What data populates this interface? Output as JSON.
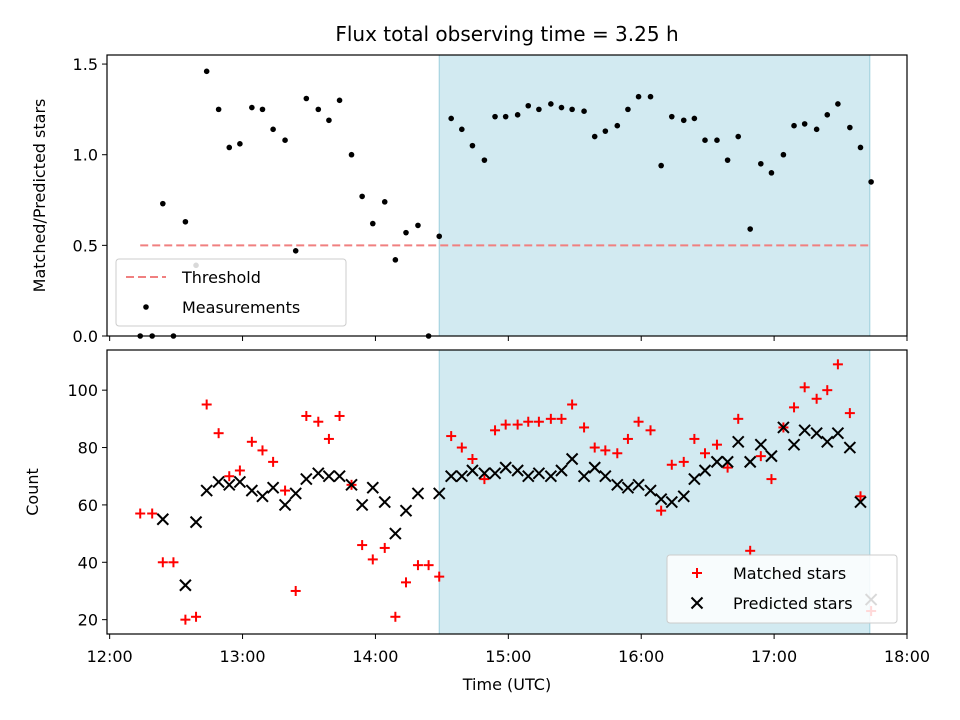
{
  "chart_data": {
    "type": "scatter",
    "title": "Flux total observing time = 3.25 h",
    "xlabel": "Time (UTC)",
    "x_tick_labels": [
      "12:00",
      "13:00",
      "14:00",
      "15:00",
      "16:00",
      "17:00",
      "18:00"
    ],
    "xlim_hours": [
      11.98,
      18.0
    ],
    "shaded_interval_hours": [
      14.48,
      17.72
    ],
    "shade_color": "#add8e6",
    "top_panel": {
      "ylabel": "Matched/Predicted stars",
      "ylim": [
        0,
        1.55
      ],
      "y_ticks": [
        "0.0",
        "0.5",
        "1.0",
        "1.5"
      ],
      "threshold": {
        "name": "Threshold",
        "value": 0.5,
        "x_range_hours": [
          12.23,
          17.72
        ],
        "color": "#f08080"
      },
      "series": [
        {
          "name": "Measurements",
          "color": "#000000",
          "points": [
            [
              12.23,
              0.0
            ],
            [
              12.32,
              0.0
            ],
            [
              12.4,
              0.73
            ],
            [
              12.48,
              0.0
            ],
            [
              12.57,
              0.63
            ],
            [
              12.65,
              0.39
            ],
            [
              12.73,
              1.46
            ],
            [
              12.82,
              1.25
            ],
            [
              12.9,
              1.04
            ],
            [
              12.98,
              1.06
            ],
            [
              13.07,
              1.26
            ],
            [
              13.15,
              1.25
            ],
            [
              13.23,
              1.14
            ],
            [
              13.32,
              1.08
            ],
            [
              13.4,
              0.47
            ],
            [
              13.48,
              1.31
            ],
            [
              13.57,
              1.25
            ],
            [
              13.65,
              1.19
            ],
            [
              13.73,
              1.3
            ],
            [
              13.82,
              1.0
            ],
            [
              13.9,
              0.77
            ],
            [
              13.98,
              0.62
            ],
            [
              14.07,
              0.74
            ],
            [
              14.15,
              0.42
            ],
            [
              14.23,
              0.57
            ],
            [
              14.32,
              0.61
            ],
            [
              14.4,
              0.0
            ],
            [
              14.48,
              0.55
            ],
            [
              14.57,
              1.2
            ],
            [
              14.65,
              1.14
            ],
            [
              14.73,
              1.05
            ],
            [
              14.82,
              0.97
            ],
            [
              14.9,
              1.21
            ],
            [
              14.98,
              1.21
            ],
            [
              15.07,
              1.22
            ],
            [
              15.15,
              1.27
            ],
            [
              15.23,
              1.25
            ],
            [
              15.32,
              1.28
            ],
            [
              15.4,
              1.26
            ],
            [
              15.48,
              1.25
            ],
            [
              15.57,
              1.24
            ],
            [
              15.65,
              1.1
            ],
            [
              15.73,
              1.13
            ],
            [
              15.82,
              1.16
            ],
            [
              15.9,
              1.25
            ],
            [
              15.98,
              1.32
            ],
            [
              16.07,
              1.32
            ],
            [
              16.15,
              0.94
            ],
            [
              16.23,
              1.21
            ],
            [
              16.32,
              1.19
            ],
            [
              16.4,
              1.2
            ],
            [
              16.48,
              1.08
            ],
            [
              16.57,
              1.08
            ],
            [
              16.65,
              0.97
            ],
            [
              16.73,
              1.1
            ],
            [
              16.82,
              0.59
            ],
            [
              16.9,
              0.95
            ],
            [
              16.98,
              0.9
            ],
            [
              17.07,
              1.0
            ],
            [
              17.15,
              1.16
            ],
            [
              17.23,
              1.17
            ],
            [
              17.32,
              1.14
            ],
            [
              17.4,
              1.22
            ],
            [
              17.48,
              1.28
            ],
            [
              17.57,
              1.15
            ],
            [
              17.65,
              1.04
            ],
            [
              17.73,
              0.85
            ]
          ]
        }
      ],
      "legend": {
        "placement": "lower left",
        "entries": [
          "Threshold",
          "Measurements"
        ]
      }
    },
    "bottom_panel": {
      "ylabel": "Count",
      "ylim": [
        15,
        114
      ],
      "y_ticks": [
        "20",
        "40",
        "60",
        "80",
        "100"
      ],
      "series": [
        {
          "name": "Matched stars",
          "color": "#ff0000",
          "points": [
            [
              12.23,
              57
            ],
            [
              12.32,
              57
            ],
            [
              12.4,
              40
            ],
            [
              12.48,
              40
            ],
            [
              12.57,
              20
            ],
            [
              12.65,
              21
            ],
            [
              12.73,
              95
            ],
            [
              12.82,
              85
            ],
            [
              12.9,
              70
            ],
            [
              12.98,
              72
            ],
            [
              13.07,
              82
            ],
            [
              13.15,
              79
            ],
            [
              13.23,
              75
            ],
            [
              13.32,
              65
            ],
            [
              13.4,
              30
            ],
            [
              13.48,
              91
            ],
            [
              13.57,
              89
            ],
            [
              13.65,
              83
            ],
            [
              13.73,
              91
            ],
            [
              13.82,
              67
            ],
            [
              13.9,
              46
            ],
            [
              13.98,
              41
            ],
            [
              14.07,
              45
            ],
            [
              14.15,
              21
            ],
            [
              14.23,
              33
            ],
            [
              14.32,
              39
            ],
            [
              14.4,
              39
            ],
            [
              14.48,
              35
            ],
            [
              14.57,
              84
            ],
            [
              14.65,
              80
            ],
            [
              14.73,
              76
            ],
            [
              14.82,
              69
            ],
            [
              14.9,
              86
            ],
            [
              14.98,
              88
            ],
            [
              15.07,
              88
            ],
            [
              15.15,
              89
            ],
            [
              15.23,
              89
            ],
            [
              15.32,
              90
            ],
            [
              15.4,
              90
            ],
            [
              15.48,
              95
            ],
            [
              15.57,
              87
            ],
            [
              15.65,
              80
            ],
            [
              15.73,
              79
            ],
            [
              15.82,
              78
            ],
            [
              15.9,
              83
            ],
            [
              15.98,
              89
            ],
            [
              16.07,
              86
            ],
            [
              16.15,
              58
            ],
            [
              16.23,
              74
            ],
            [
              16.32,
              75
            ],
            [
              16.4,
              83
            ],
            [
              16.48,
              78
            ],
            [
              16.57,
              81
            ],
            [
              16.65,
              73
            ],
            [
              16.73,
              90
            ],
            [
              16.82,
              44
            ],
            [
              16.9,
              77
            ],
            [
              16.98,
              69
            ],
            [
              17.07,
              87
            ],
            [
              17.15,
              94
            ],
            [
              17.23,
              101
            ],
            [
              17.32,
              97
            ],
            [
              17.4,
              100
            ],
            [
              17.48,
              109
            ],
            [
              17.57,
              92
            ],
            [
              17.65,
              63
            ],
            [
              17.73,
              23
            ]
          ]
        },
        {
          "name": "Predicted stars",
          "color": "#000000",
          "points": [
            [
              12.4,
              55
            ],
            [
              12.57,
              32
            ],
            [
              12.65,
              54
            ],
            [
              12.73,
              65
            ],
            [
              12.82,
              68
            ],
            [
              12.9,
              67
            ],
            [
              12.98,
              68
            ],
            [
              13.07,
              65
            ],
            [
              13.15,
              63
            ],
            [
              13.23,
              66
            ],
            [
              13.32,
              60
            ],
            [
              13.4,
              64
            ],
            [
              13.48,
              69
            ],
            [
              13.57,
              71
            ],
            [
              13.65,
              70
            ],
            [
              13.73,
              70
            ],
            [
              13.82,
              67
            ],
            [
              13.9,
              60
            ],
            [
              13.98,
              66
            ],
            [
              14.07,
              61
            ],
            [
              14.15,
              50
            ],
            [
              14.23,
              58
            ],
            [
              14.32,
              64
            ],
            [
              14.48,
              64
            ],
            [
              14.57,
              70
            ],
            [
              14.65,
              70
            ],
            [
              14.73,
              72
            ],
            [
              14.82,
              71
            ],
            [
              14.9,
              71
            ],
            [
              14.98,
              73
            ],
            [
              15.07,
              72
            ],
            [
              15.15,
              70
            ],
            [
              15.23,
              71
            ],
            [
              15.32,
              70
            ],
            [
              15.4,
              72
            ],
            [
              15.48,
              76
            ],
            [
              15.57,
              70
            ],
            [
              15.65,
              73
            ],
            [
              15.73,
              70
            ],
            [
              15.82,
              67
            ],
            [
              15.9,
              66
            ],
            [
              15.98,
              67
            ],
            [
              16.07,
              65
            ],
            [
              16.15,
              62
            ],
            [
              16.23,
              61
            ],
            [
              16.32,
              63
            ],
            [
              16.4,
              69
            ],
            [
              16.48,
              72
            ],
            [
              16.57,
              75
            ],
            [
              16.65,
              75
            ],
            [
              16.73,
              82
            ],
            [
              16.82,
              75
            ],
            [
              16.9,
              81
            ],
            [
              16.98,
              77
            ],
            [
              17.07,
              87
            ],
            [
              17.15,
              81
            ],
            [
              17.23,
              86
            ],
            [
              17.32,
              85
            ],
            [
              17.4,
              82
            ],
            [
              17.48,
              85
            ],
            [
              17.57,
              80
            ],
            [
              17.65,
              61
            ],
            [
              17.73,
              27
            ]
          ]
        }
      ],
      "legend": {
        "placement": "lower right",
        "entries": [
          "Matched stars",
          "Predicted stars"
        ]
      }
    }
  }
}
